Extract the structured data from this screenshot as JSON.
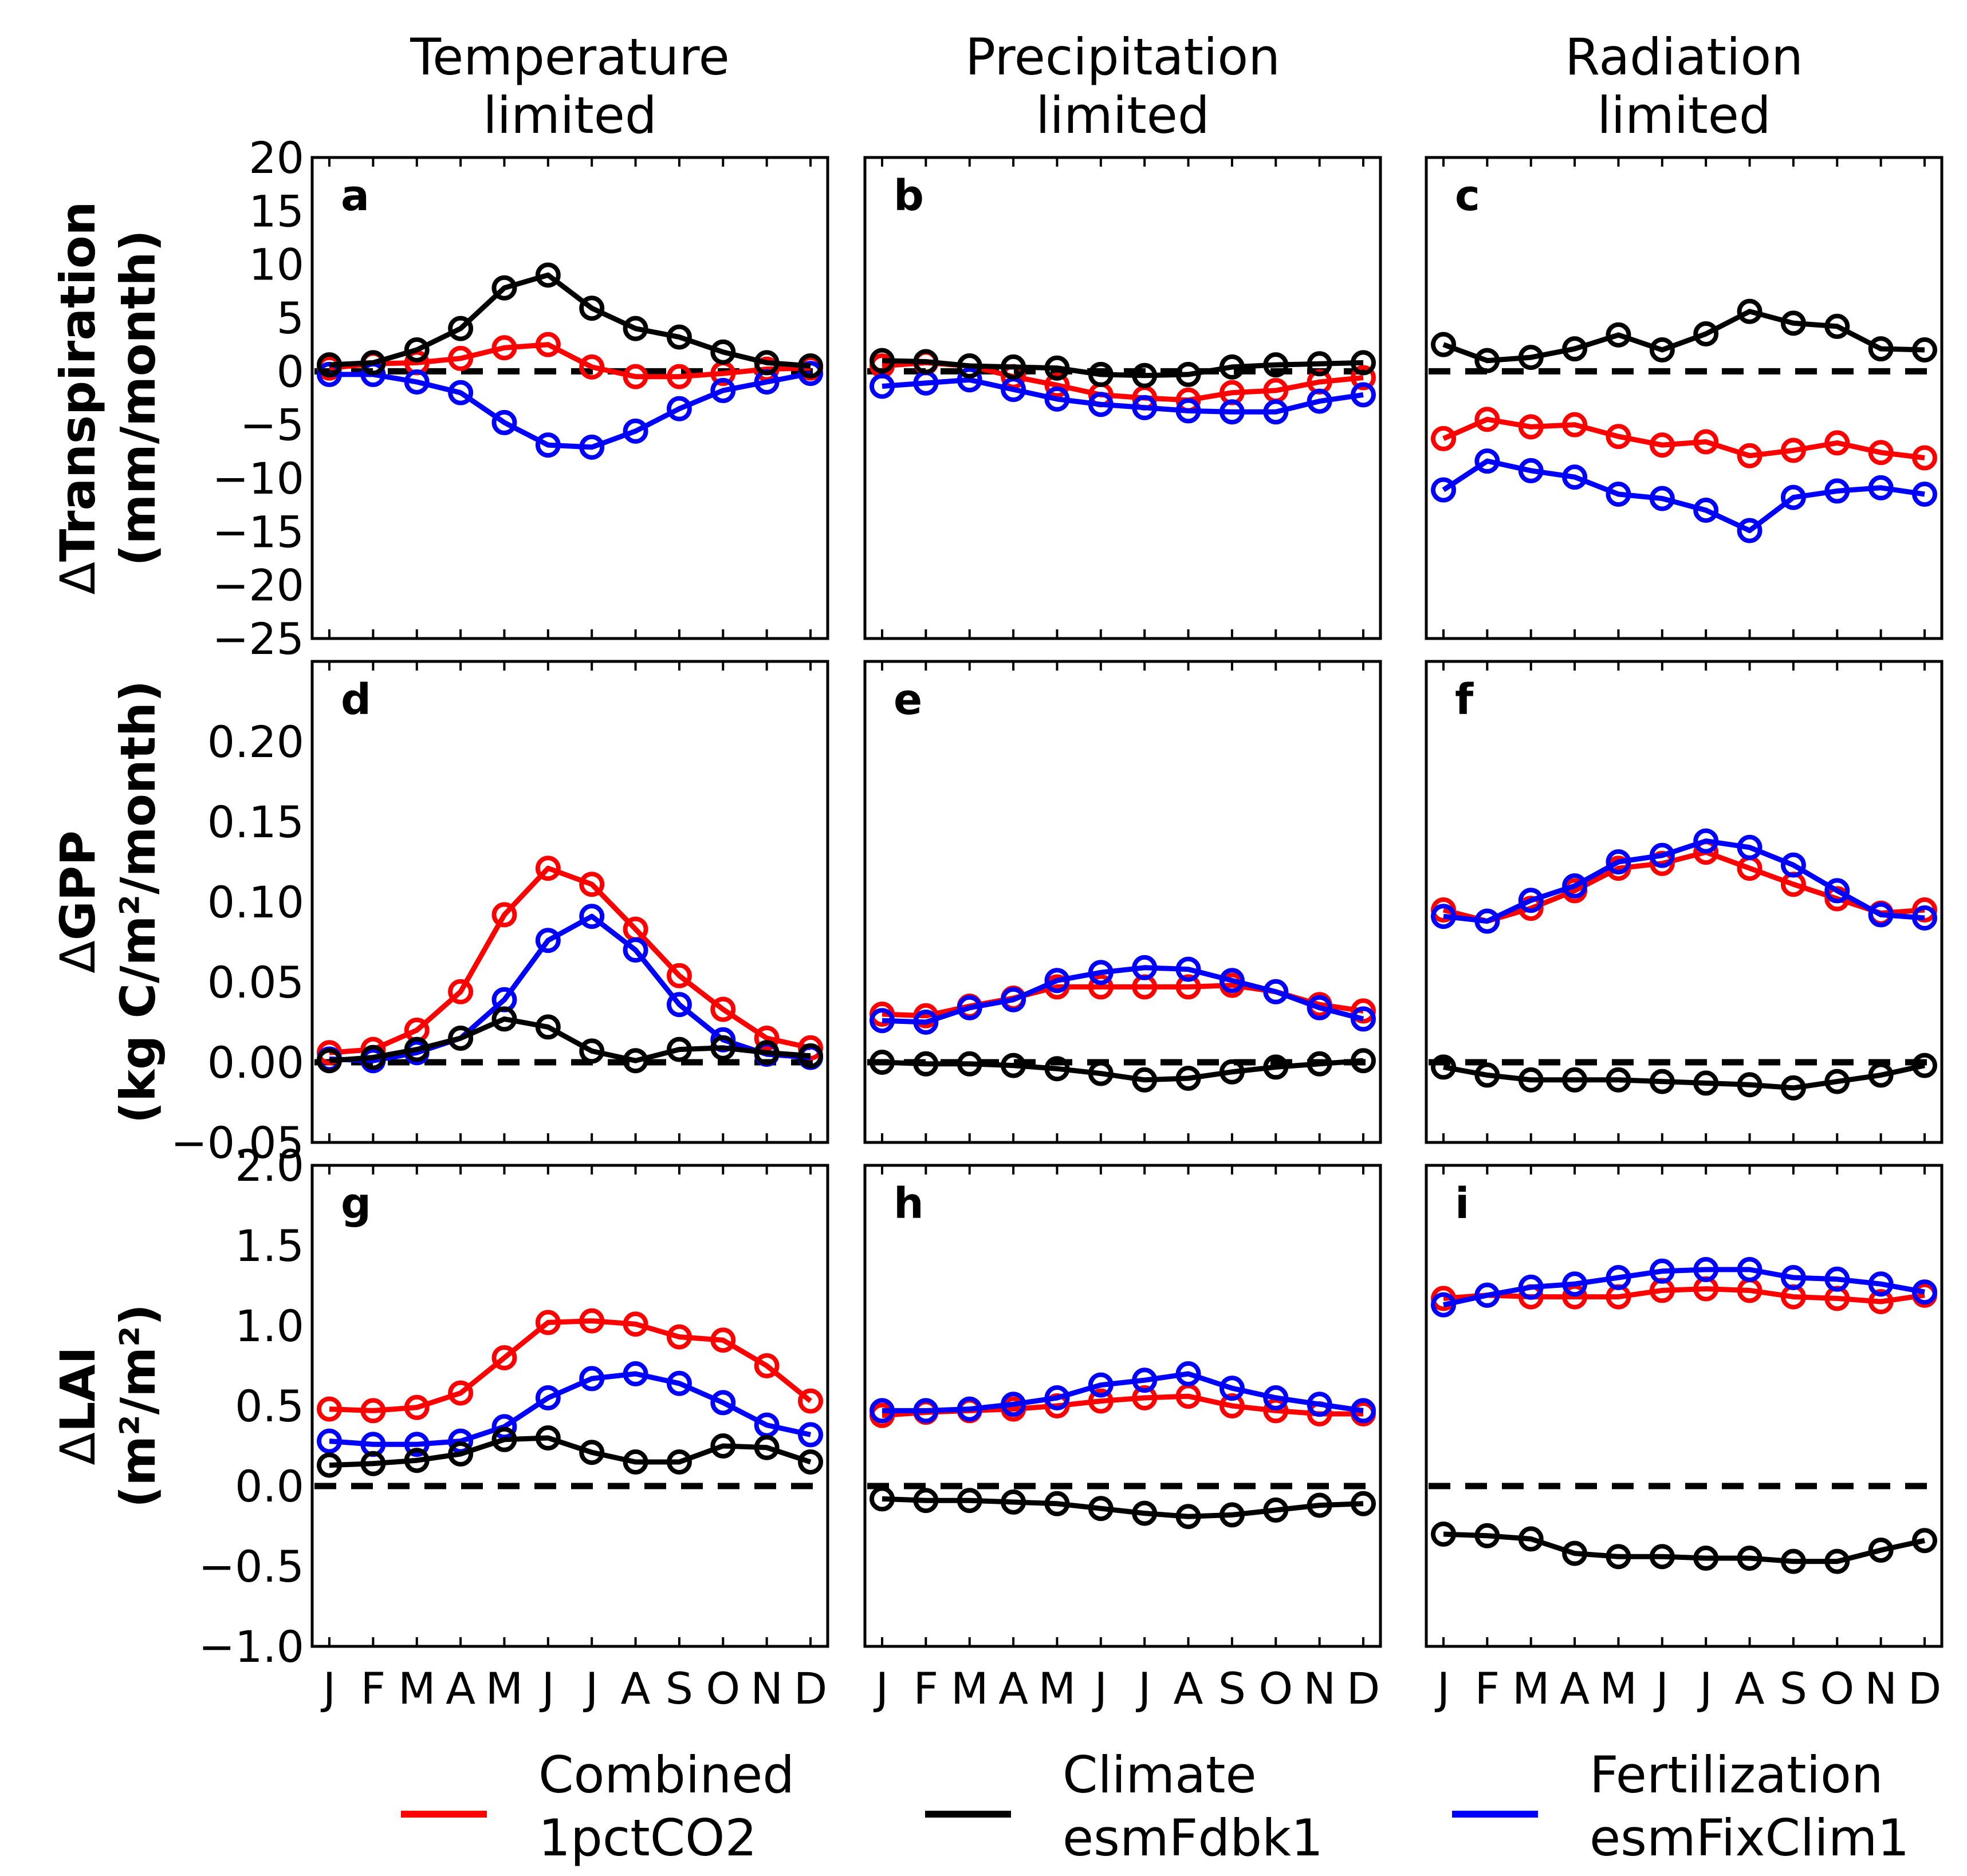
{
  "chart_data": {
    "type": "line",
    "months": [
      "J",
      "F",
      "M",
      "A",
      "M",
      "J",
      "J",
      "A",
      "S",
      "O",
      "N",
      "D"
    ],
    "column_titles": [
      [
        "Temperature",
        "limited"
      ],
      [
        "Precipitation",
        "limited"
      ],
      [
        "Radiation",
        "limited"
      ]
    ],
    "rows": [
      {
        "delta": "Δ",
        "label": "Transpiration",
        "unit": "(mm/month)",
        "ylim": [
          -25,
          20
        ],
        "yticks": [
          -25,
          -20,
          -15,
          -10,
          -5,
          0,
          5,
          10,
          15,
          20
        ],
        "ytick_labels": [
          "−25",
          "−20",
          "−15",
          "−10",
          "−5",
          "0",
          "5",
          "10",
          "15",
          "20"
        ]
      },
      {
        "delta": "Δ",
        "label": "GPP",
        "unit": "(kg C/m²/month)",
        "ylim": [
          -0.05,
          0.25
        ],
        "yticks": [
          -0.05,
          0.0,
          0.05,
          0.1,
          0.15,
          0.2
        ],
        "ytick_labels": [
          "−0.05",
          "0.00",
          "0.05",
          "0.10",
          "0.15",
          "0.20"
        ]
      },
      {
        "delta": "Δ",
        "label": "LAI",
        "unit": "(m²/m²)",
        "ylim": [
          -1.0,
          2.0
        ],
        "yticks": [
          -1.0,
          -0.5,
          0.0,
          0.5,
          1.0,
          1.5,
          2.0
        ],
        "ytick_labels": [
          "−1.0",
          "−0.5",
          "0.0",
          "0.5",
          "1.0",
          "1.5",
          "2.0"
        ]
      }
    ],
    "legend": [
      {
        "key": "combined",
        "line1": "Combined",
        "line2": "1pctCO2",
        "color": "#ff0000"
      },
      {
        "key": "climate",
        "line1": "Climate",
        "line2": "esmFdbk1",
        "color": "#000000"
      },
      {
        "key": "fertilization",
        "line1": "Fertilization",
        "line2": "esmFixClim1",
        "color": "#0000ff"
      }
    ],
    "panels": [
      {
        "letter": "a",
        "row": 0,
        "col": 0,
        "series": {
          "combined": [
            0.3,
            0.7,
            0.8,
            1.2,
            2.2,
            2.5,
            0.4,
            -0.5,
            -0.5,
            -0.2,
            0.2,
            0.3
          ],
          "climate": [
            0.6,
            0.8,
            2.0,
            4.0,
            7.8,
            9.0,
            5.9,
            4.0,
            3.2,
            1.8,
            0.8,
            0.5
          ],
          "fertilization": [
            -0.3,
            -0.3,
            -1.0,
            -2.0,
            -4.8,
            -6.9,
            -7.1,
            -5.6,
            -3.5,
            -1.8,
            -1.0,
            -0.2
          ]
        }
      },
      {
        "letter": "b",
        "row": 0,
        "col": 1,
        "series": {
          "combined": [
            0.5,
            0.8,
            0.5,
            -0.5,
            -1.3,
            -2.2,
            -2.5,
            -2.7,
            -2.0,
            -1.8,
            -1.0,
            -0.6
          ],
          "climate": [
            1.0,
            0.9,
            0.5,
            0.4,
            0.3,
            -0.3,
            -0.4,
            -0.3,
            0.4,
            0.6,
            0.7,
            0.8
          ],
          "fertilization": [
            -1.4,
            -1.1,
            -0.8,
            -1.7,
            -2.6,
            -3.1,
            -3.4,
            -3.7,
            -3.8,
            -3.8,
            -2.8,
            -2.2
          ]
        }
      },
      {
        "letter": "c",
        "row": 0,
        "col": 2,
        "series": {
          "combined": [
            -6.3,
            -4.5,
            -5.2,
            -5.0,
            -6.1,
            -6.9,
            -6.6,
            -7.9,
            -7.4,
            -6.7,
            -7.6,
            -8.1
          ],
          "climate": [
            2.5,
            1.0,
            1.3,
            2.1,
            3.4,
            2.0,
            3.5,
            5.6,
            4.5,
            4.2,
            2.1,
            2.0
          ],
          "fertilization": [
            -11.1,
            -8.4,
            -9.3,
            -9.9,
            -11.5,
            -11.9,
            -13.0,
            -14.9,
            -11.8,
            -11.2,
            -10.9,
            -11.5
          ]
        }
      },
      {
        "letter": "d",
        "row": 1,
        "col": 0,
        "series": {
          "combined": [
            0.006,
            0.008,
            0.02,
            0.044,
            0.092,
            0.121,
            0.111,
            0.083,
            0.054,
            0.033,
            0.015,
            0.009
          ],
          "climate": [
            0.001,
            0.003,
            0.008,
            0.015,
            0.027,
            0.022,
            0.007,
            0.001,
            0.008,
            0.009,
            0.006,
            0.004
          ],
          "fertilization": [
            0.002,
            0.001,
            0.006,
            0.015,
            0.039,
            0.076,
            0.091,
            0.07,
            0.036,
            0.014,
            0.005,
            0.003
          ]
        }
      },
      {
        "letter": "e",
        "row": 1,
        "col": 1,
        "series": {
          "combined": [
            0.03,
            0.029,
            0.035,
            0.04,
            0.047,
            0.047,
            0.047,
            0.047,
            0.048,
            0.044,
            0.036,
            0.032
          ],
          "climate": [
            0.0,
            -0.001,
            -0.001,
            -0.002,
            -0.004,
            -0.007,
            -0.011,
            -0.01,
            -0.006,
            -0.003,
            -0.001,
            0.001
          ],
          "fertilization": [
            0.026,
            0.025,
            0.034,
            0.039,
            0.051,
            0.056,
            0.059,
            0.058,
            0.051,
            0.044,
            0.034,
            0.027
          ]
        }
      },
      {
        "letter": "f",
        "row": 1,
        "col": 2,
        "series": {
          "combined": [
            0.095,
            0.088,
            0.096,
            0.107,
            0.121,
            0.124,
            0.131,
            0.121,
            0.111,
            0.102,
            0.093,
            0.095
          ],
          "climate": [
            -0.003,
            -0.008,
            -0.011,
            -0.011,
            -0.011,
            -0.012,
            -0.013,
            -0.014,
            -0.016,
            -0.012,
            -0.008,
            -0.002
          ],
          "fertilization": [
            0.091,
            0.088,
            0.101,
            0.11,
            0.125,
            0.129,
            0.138,
            0.134,
            0.123,
            0.107,
            0.092,
            0.09
          ]
        }
      },
      {
        "letter": "g",
        "row": 2,
        "col": 0,
        "series": {
          "combined": [
            0.48,
            0.47,
            0.49,
            0.58,
            0.8,
            1.02,
            1.03,
            1.01,
            0.93,
            0.91,
            0.75,
            0.53
          ],
          "climate": [
            0.13,
            0.14,
            0.16,
            0.2,
            0.29,
            0.3,
            0.21,
            0.15,
            0.15,
            0.25,
            0.24,
            0.15
          ],
          "fertilization": [
            0.28,
            0.26,
            0.26,
            0.28,
            0.37,
            0.55,
            0.67,
            0.7,
            0.64,
            0.52,
            0.38,
            0.32
          ]
        }
      },
      {
        "letter": "h",
        "row": 2,
        "col": 1,
        "series": {
          "combined": [
            0.44,
            0.46,
            0.47,
            0.48,
            0.5,
            0.53,
            0.55,
            0.56,
            0.5,
            0.47,
            0.45,
            0.45
          ],
          "climate": [
            -0.08,
            -0.09,
            -0.09,
            -0.1,
            -0.11,
            -0.14,
            -0.17,
            -0.19,
            -0.18,
            -0.15,
            -0.12,
            -0.11
          ],
          "fertilization": [
            0.47,
            0.47,
            0.48,
            0.51,
            0.55,
            0.63,
            0.66,
            0.7,
            0.61,
            0.55,
            0.51,
            0.47
          ]
        }
      },
      {
        "letter": "i",
        "row": 2,
        "col": 2,
        "series": {
          "combined": [
            1.17,
            1.19,
            1.18,
            1.18,
            1.18,
            1.22,
            1.23,
            1.22,
            1.18,
            1.17,
            1.15,
            1.19
          ],
          "climate": [
            -0.3,
            -0.31,
            -0.33,
            -0.42,
            -0.44,
            -0.44,
            -0.45,
            -0.45,
            -0.47,
            -0.47,
            -0.4,
            -0.34
          ],
          "fertilization": [
            1.13,
            1.19,
            1.24,
            1.26,
            1.3,
            1.34,
            1.35,
            1.35,
            1.3,
            1.29,
            1.26,
            1.21
          ]
        }
      }
    ]
  }
}
